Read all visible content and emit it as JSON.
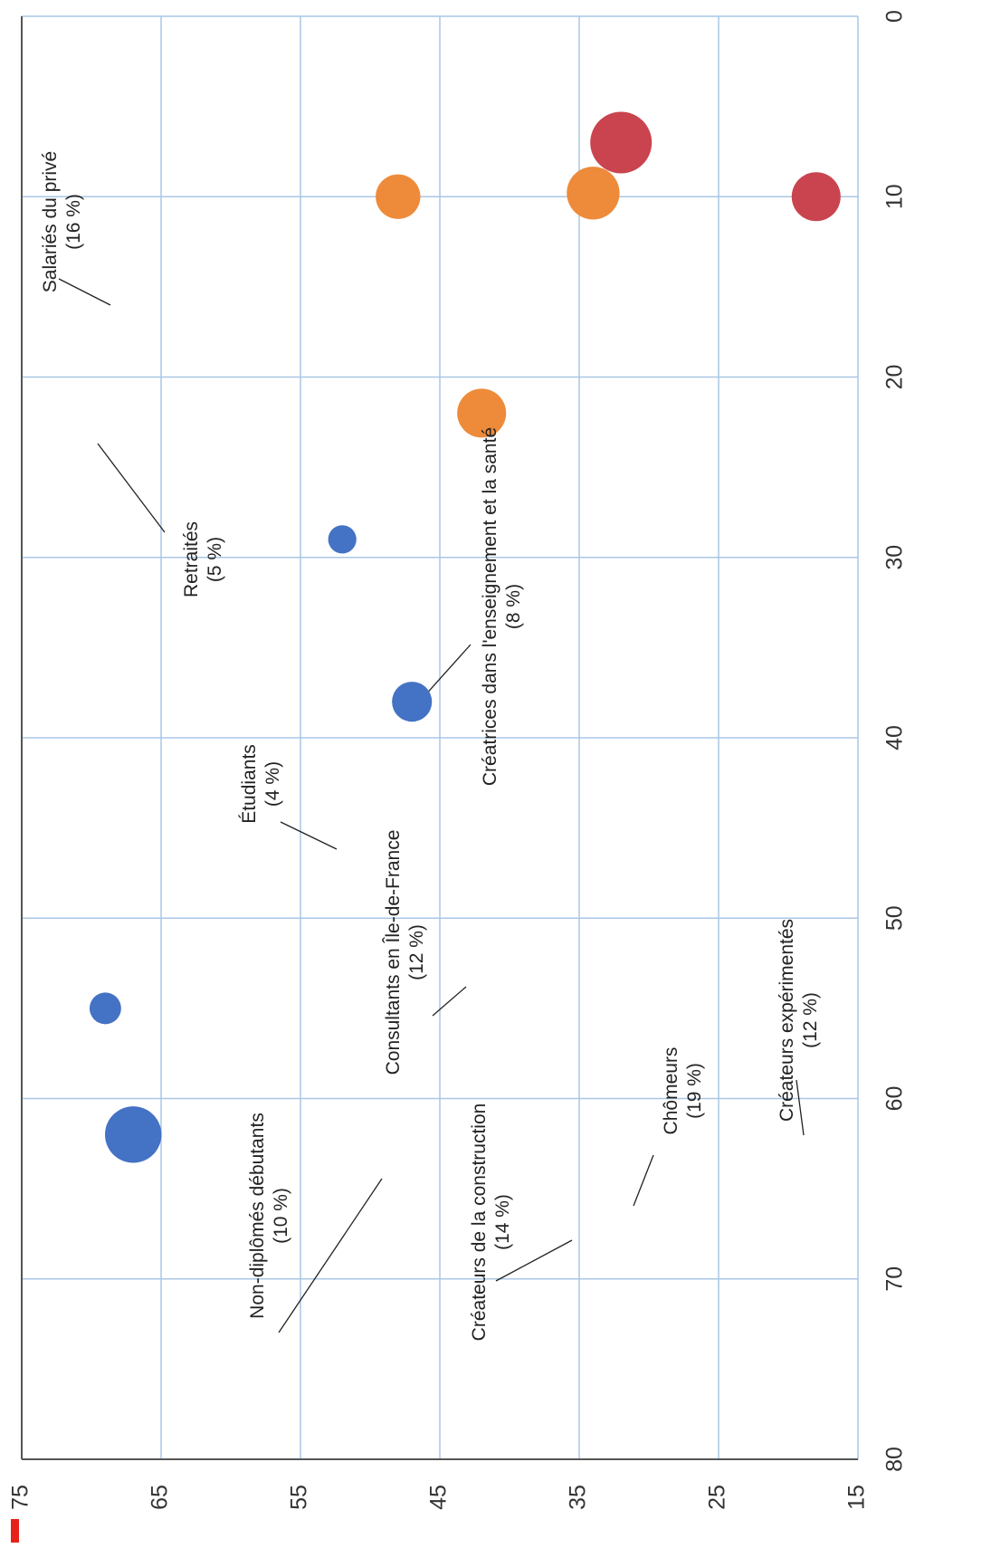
{
  "chart_data": {
    "type": "scatter",
    "orientation": "rotated-90-clockwise",
    "title": "",
    "title_partial": "",
    "xlabel": "",
    "ylabel": "",
    "xlim": [
      0,
      80
    ],
    "ylim": [
      15,
      75
    ],
    "xticks": [
      "0",
      "10",
      "20",
      "30",
      "40",
      "50",
      "60",
      "70",
      "80"
    ],
    "yticks": [
      "15",
      "25",
      "35",
      "45",
      "55",
      "65",
      "75"
    ],
    "grid": true,
    "legend": "none",
    "colors": {
      "blue": "#4472C4",
      "orange": "#ED8B3A",
      "red": "#C9444F",
      "grid": "#A9C7E6",
      "axis": "#555555",
      "leader": "#222222"
    },
    "points": [
      {
        "name": "Salariés du privé",
        "share": "(16 %)",
        "x": 62,
        "y": 67,
        "color": "blue",
        "size": 16
      },
      {
        "name": "Retraités",
        "share": "(5 %)",
        "x": 55,
        "y": 69,
        "color": "blue",
        "size": 5
      },
      {
        "name": "Créatrices dans l'enseignement et la santé",
        "share": "(8 %)",
        "x": 38,
        "y": 47,
        "color": "blue",
        "size": 8
      },
      {
        "name": "Étudiants",
        "share": "(4 %)",
        "x": 29,
        "y": 52,
        "color": "blue",
        "size": 4
      },
      {
        "name": "Consultants en Île-de-France",
        "share": "(12 %)",
        "x": 22,
        "y": 42,
        "color": "orange",
        "size": 12
      },
      {
        "name": "Non-diplômés débutants",
        "share": "(10 %)",
        "x": 10,
        "y": 48,
        "color": "orange",
        "size": 10
      },
      {
        "name": "Créateurs de la construction",
        "share": "(14 %)",
        "x": 9.8,
        "y": 34,
        "color": "orange",
        "size": 14
      },
      {
        "name": "Chômeurs",
        "share": "(19 %)",
        "x": 7,
        "y": 32,
        "color": "red",
        "size": 19
      },
      {
        "name": "Créateurs expérimentés",
        "share": "(12 %)",
        "x": 10,
        "y": 18,
        "color": "red",
        "size": 12
      }
    ]
  }
}
